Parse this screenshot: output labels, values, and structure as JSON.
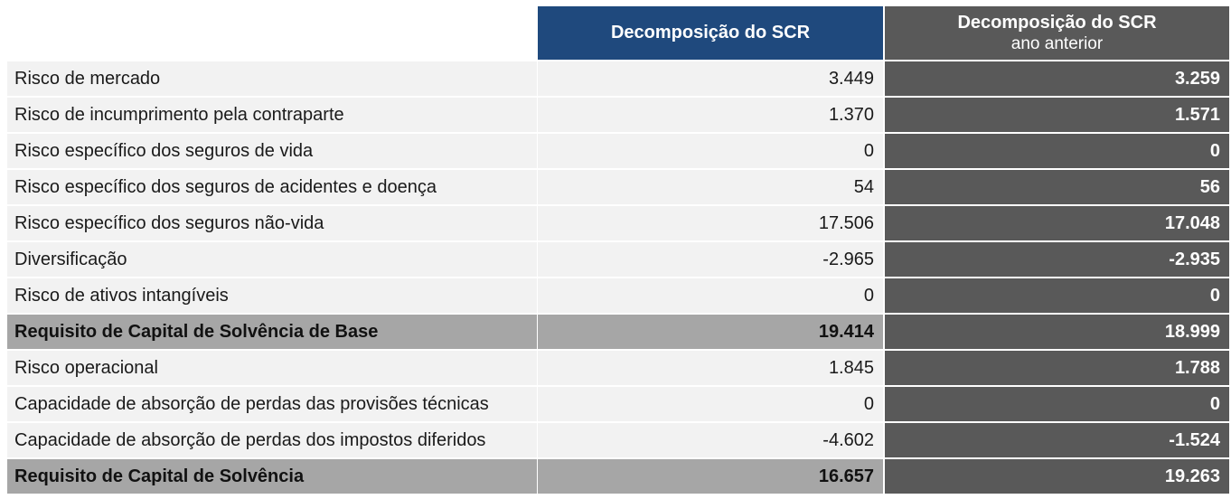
{
  "header": {
    "current": "Decomposição do SCR",
    "previous_title": "Decomposição do SCR",
    "previous_subtitle": "ano anterior"
  },
  "rows": [
    {
      "label": "Risco de mercado",
      "current": "3.449",
      "previous": "3.259",
      "total": false
    },
    {
      "label": "Risco de incumprimento pela contraparte",
      "current": "1.370",
      "previous": "1.571",
      "total": false
    },
    {
      "label": "Risco específico dos seguros de vida",
      "current": "0",
      "previous": "0",
      "total": false
    },
    {
      "label": "Risco específico dos seguros de acidentes e doença",
      "current": "54",
      "previous": "56",
      "total": false
    },
    {
      "label": "Risco específico dos seguros não-vida",
      "current": "17.506",
      "previous": "17.048",
      "total": false
    },
    {
      "label": "Diversificação",
      "current": "-2.965",
      "previous": "-2.935",
      "total": false
    },
    {
      "label": "Risco de ativos intangíveis",
      "current": "0",
      "previous": "0",
      "total": false
    },
    {
      "label": "Requisito de Capital de Solvência de Base",
      "current": "19.414",
      "previous": "18.999",
      "total": true
    },
    {
      "label": "Risco operacional",
      "current": "1.845",
      "previous": "1.788",
      "total": false
    },
    {
      "label": "Capacidade de absorção de perdas das provisões técnicas",
      "current": "0",
      "previous": "0",
      "total": false
    },
    {
      "label": "Capacidade de absorção de perdas dos impostos diferidos",
      "current": "-4.602",
      "previous": "-1.524",
      "total": false
    },
    {
      "label": "Requisito de Capital de Solvência",
      "current": "16.657",
      "previous": "19.263",
      "total": true
    }
  ]
}
